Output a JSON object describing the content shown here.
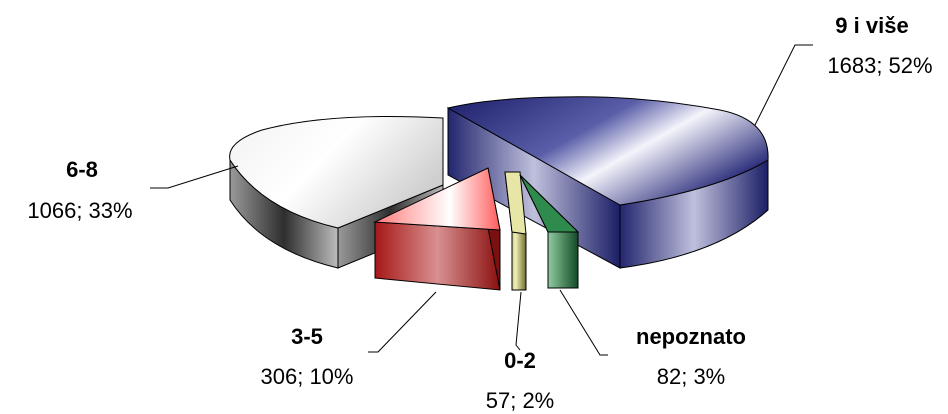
{
  "chart_data": {
    "type": "pie",
    "style": "3d-exploded",
    "title": "",
    "slices": [
      {
        "category": "9 i više",
        "label": "1683; 52%",
        "value": 1683,
        "percent": 52,
        "color": "#2b2d7a"
      },
      {
        "category": "nepoznato",
        "label": "82; 3%",
        "value": 82,
        "percent": 3,
        "color": "#1f6b3a"
      },
      {
        "category": "0-2",
        "label": "57; 2%",
        "value": 57,
        "percent": 2,
        "color": "#9c9a4a"
      },
      {
        "category": "3-5",
        "label": "306; 10%",
        "value": 306,
        "percent": 10,
        "color": "#b11e1e"
      },
      {
        "category": "6-8",
        "label": "1066; 33%",
        "value": 1066,
        "percent": 33,
        "color": "#8a8a8a"
      }
    ]
  }
}
